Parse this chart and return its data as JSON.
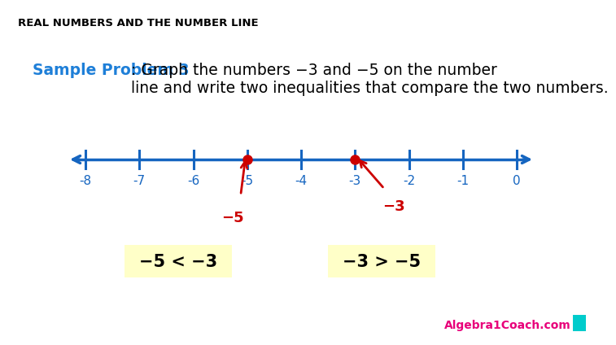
{
  "title": "REAL NUMBERS AND THE NUMBER LINE",
  "title_fontsize": 9.5,
  "title_color": "#000000",
  "problem_label": "Sample Problem 3",
  "problem_label_color": "#1E7FD8",
  "problem_text": ": Graph the numbers −3 and −5 on the number\nline and write two inequalities that compare the two numbers.",
  "problem_fontsize": 13.5,
  "tick_positions": [
    -8,
    -7,
    -6,
    -5,
    -4,
    -3,
    -2,
    -1,
    0
  ],
  "tick_labels": [
    "-8",
    "-7",
    "-6",
    "-5",
    "-4",
    "-3",
    "-2",
    "-1",
    "0"
  ],
  "number_line_color": "#1565C0",
  "point1": -5,
  "point2": -3,
  "point_color": "#CC0000",
  "arrow_color": "#CC0000",
  "label1": "−5",
  "label2": "−3",
  "label_color": "#CC0000",
  "label_fontsize": 13,
  "inequality1": "−5 < −3",
  "inequality2": "−3 > −5",
  "inequality_fontsize": 15,
  "inequality_color": "#000000",
  "inequality_bg": "#FFFFC8",
  "background_color": "#FFFFFF",
  "watermark": "Algebra1Coach.com",
  "watermark_color": "#E8007A",
  "watermark_fontsize": 10
}
